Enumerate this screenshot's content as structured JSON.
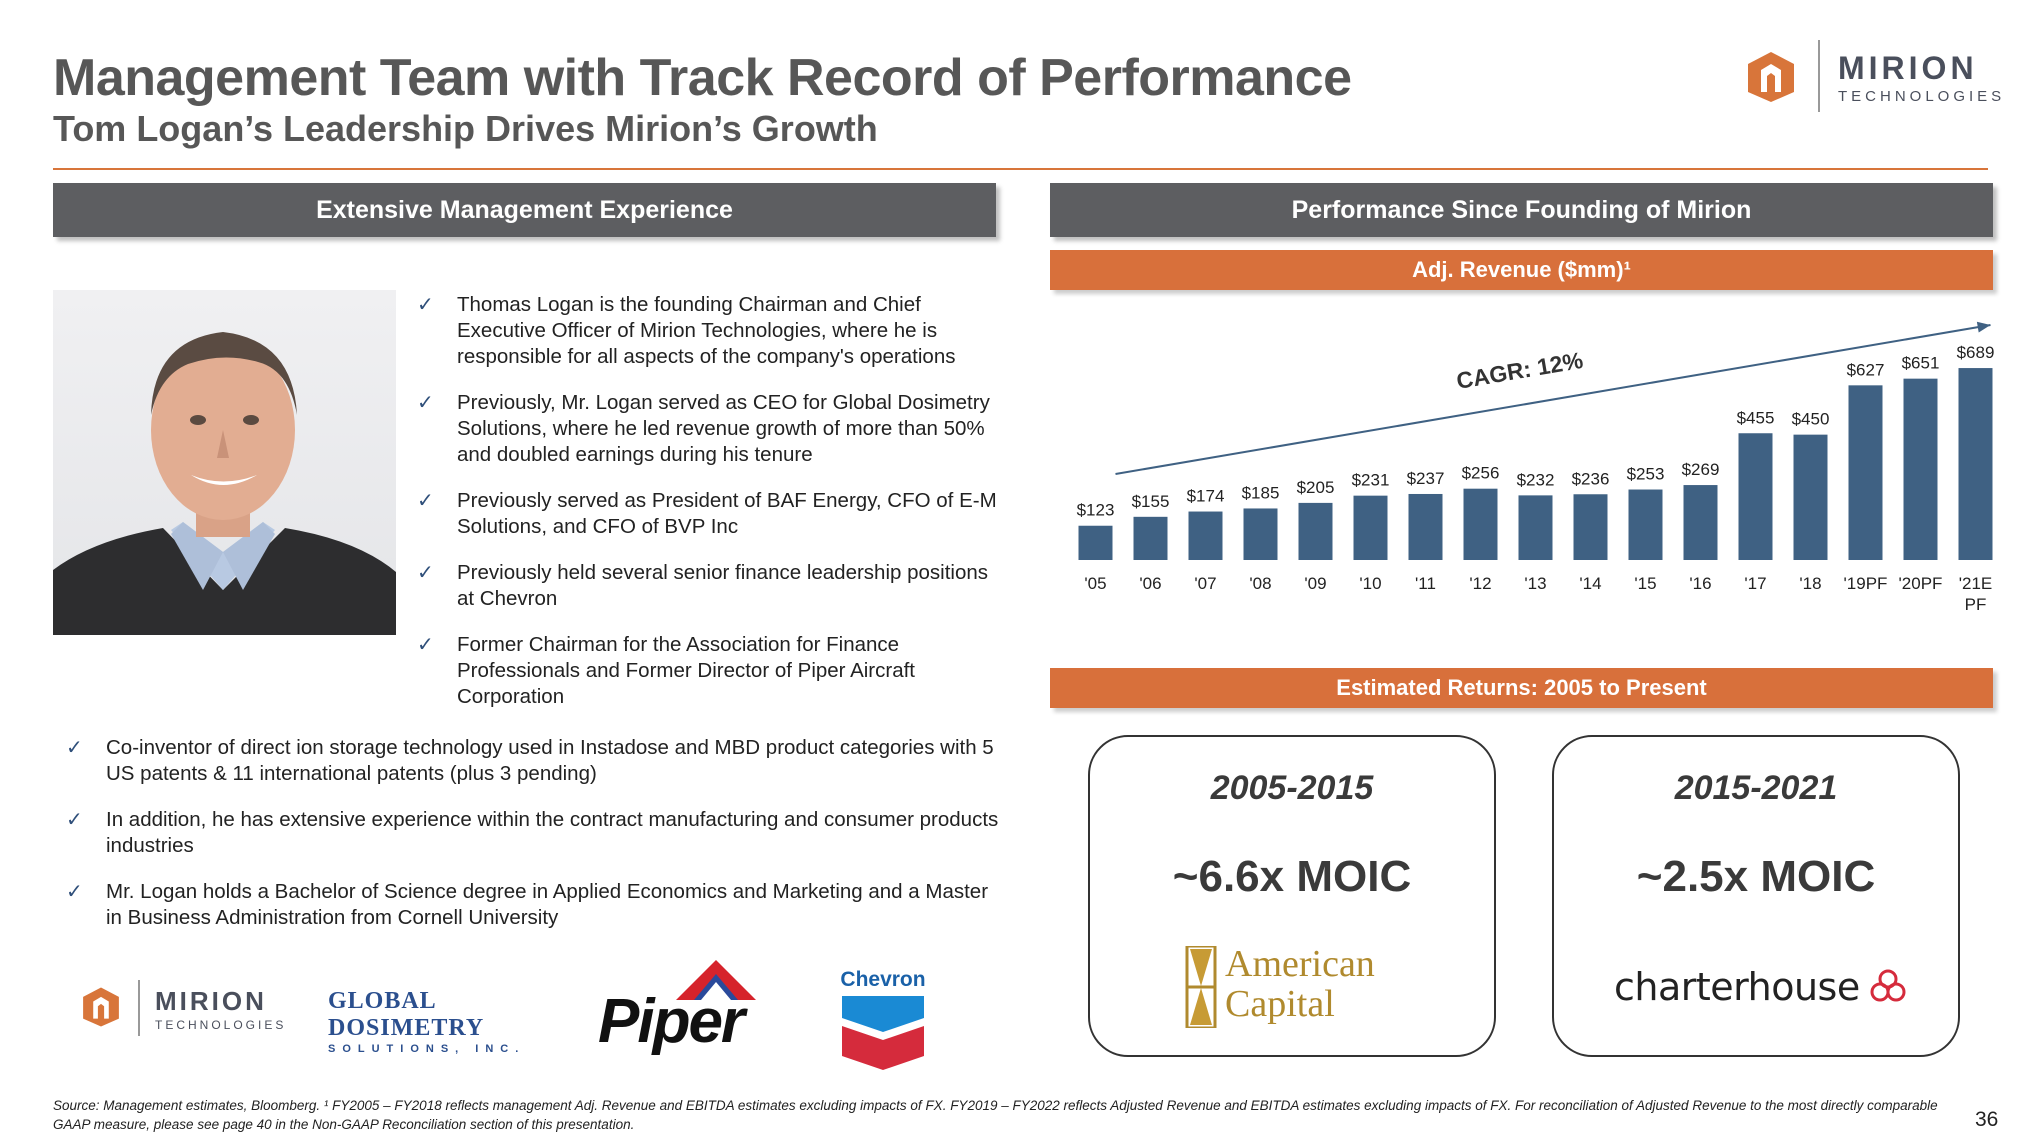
{
  "header": {
    "title": "Management Team with Track Record of Performance",
    "subtitle": "Tom Logan’s Leadership Drives Mirion’s Growth",
    "logo_name": "MIRION",
    "logo_sub": "TECHNOLOGIES"
  },
  "left": {
    "section_title": "Extensive Management Experience",
    "bullets_top": [
      "Thomas Logan is the founding Chairman and Chief Executive Officer of Mirion Technologies, where he is responsible for all aspects of the company's operations",
      "Previously, Mr. Logan served as CEO for Global Dosimetry Solutions, where he led revenue growth of more than 50% and doubled earnings during his tenure",
      "Previously served as President of BAF Energy, CFO of E-M Solutions, and CFO of BVP Inc",
      "Previously held several senior finance leadership positions at Chevron",
      "Former Chairman for the Association for Finance Professionals and Former Director of Piper Aircraft Corporation"
    ],
    "bullets_bottom": [
      "Co-inventor of direct ion storage technology used in Instadose and MBD product categories with 5 US patents & 11 international patents (plus 3 pending)",
      "In addition, he has extensive experience within the contract manufacturing and consumer products industries",
      "Mr. Logan holds a Bachelor of Science degree in Applied Economics and Marketing and a Master in Business Administration from Cornell University"
    ],
    "logos": {
      "mirion_name": "MIRION",
      "mirion_sub": "TECHNOLOGIES",
      "gds_line1": "GLOBAL DOSIMETRY",
      "gds_line2": "SOLUTIONS, INC.",
      "piper": "Piper",
      "chevron": "Chevron"
    }
  },
  "right": {
    "section_title": "Performance Since Founding of Mirion",
    "chart_title": "Adj. Revenue ($mm)¹",
    "returns_title": "Estimated Returns: 2005 to Present",
    "returns": [
      {
        "period": "2005-2015",
        "moic": "~6.6x MOIC",
        "sponsor_line1": "American",
        "sponsor_line2": "Capital"
      },
      {
        "period": "2015-2021",
        "moic": "~2.5x MOIC",
        "sponsor": "charterhouse"
      }
    ]
  },
  "chart_data": {
    "type": "bar",
    "title": "Adj. Revenue ($mm)¹",
    "categories": [
      "'05",
      "'06",
      "'07",
      "'08",
      "'09",
      "'10",
      "'11",
      "'12",
      "'13",
      "'14",
      "'15",
      "'16",
      "'17",
      "'18",
      "'19PF",
      "'20PF",
      "'21E PF"
    ],
    "values": [
      123,
      155,
      174,
      185,
      205,
      231,
      237,
      256,
      232,
      236,
      253,
      269,
      455,
      450,
      627,
      651,
      689
    ],
    "labels": [
      "$123",
      "$155",
      "$174",
      "$185",
      "$205",
      "$231",
      "$237",
      "$256",
      "$232",
      "$236",
      "$253",
      "$269",
      "$455",
      "$450",
      "$627",
      "$651",
      "$689"
    ],
    "annotation": "CAGR: 12%",
    "bar_color": "#3f6183",
    "ylim": [
      0,
      700
    ],
    "grid": false
  },
  "footnote": "Source: Management estimates, Bloomberg. ¹ FY2005 – FY2018 reflects management Adj. Revenue and EBITDA estimates excluding impacts of FX. FY2019 – FY2022 reflects Adjusted Revenue and EBITDA estimates excluding impacts of FX. For reconciliation of Adjusted Revenue to the most directly comparable GAAP measure, please see page 40 in the Non-GAAP Reconciliation section of this presentation.",
  "page_number": "36"
}
